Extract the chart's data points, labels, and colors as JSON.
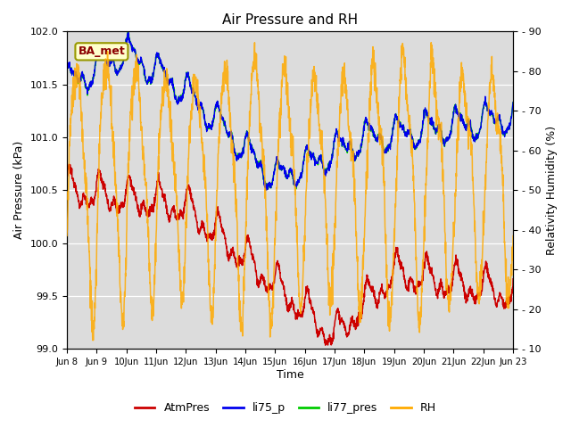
{
  "title": "Air Pressure and RH",
  "xlabel": "Time",
  "ylabel_left": "Air Pressure (kPa)",
  "ylabel_right": "Relativity Humidity (%)",
  "ylim_left": [
    99.0,
    102.0
  ],
  "ylim_right": [
    10,
    90
  ],
  "annotation": "BA_met",
  "bg_color": "#dcdcdc",
  "colors": {
    "AtmPres": "#cc0000",
    "li75_p": "#0000ee",
    "li77_pres": "#00cc00",
    "RH": "#ffaa00"
  },
  "x_tick_labels": [
    "Jun 8",
    "Jun 9",
    "10Jun",
    "11Jun",
    "12Jun",
    "13Jun",
    "14Jun",
    "15Jun",
    "16Jun",
    "17Jun",
    "18Jun",
    "19Jun",
    "20Jun",
    "21Jun",
    "22Jun",
    "Jun 23"
  ],
  "yticks_left": [
    99.0,
    99.5,
    100.0,
    100.5,
    101.0,
    101.5,
    102.0
  ],
  "yticks_right": [
    10,
    20,
    30,
    40,
    50,
    60,
    70,
    80,
    90
  ],
  "legend_labels": [
    "AtmPres",
    "li75_p",
    "li77_pres",
    "RH"
  ]
}
